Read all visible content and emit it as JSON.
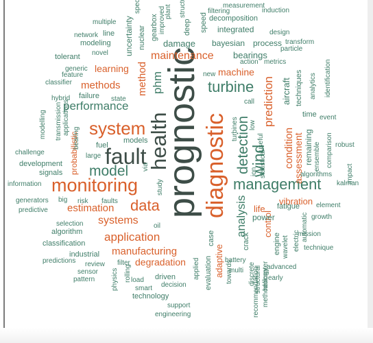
{
  "wordcloud": {
    "colors": {
      "teal": "#3f7d68",
      "orange": "#d9602b",
      "darkgray": "#3d4d47"
    },
    "words": [
      {
        "t": "prognostic",
        "c": "darkgray"
      },
      {
        "t": "diagnostic",
        "c": "orange"
      },
      {
        "t": "health",
        "c": "darkgray"
      },
      {
        "t": "fault",
        "c": "darkgray"
      },
      {
        "t": "monitoring",
        "c": "orange"
      },
      {
        "t": "system",
        "c": "orange"
      },
      {
        "t": "management",
        "c": "teal"
      },
      {
        "t": "turbine",
        "c": "teal"
      },
      {
        "t": "wind",
        "c": "teal"
      },
      {
        "t": "detection",
        "c": "teal"
      },
      {
        "t": "model",
        "c": "teal"
      },
      {
        "t": "data",
        "c": "orange"
      },
      {
        "t": "performance",
        "c": "teal"
      },
      {
        "t": "analysis",
        "c": "teal"
      },
      {
        "t": "maintenance",
        "c": "orange"
      },
      {
        "t": "phm",
        "c": "teal"
      },
      {
        "t": "condition",
        "c": "orange"
      },
      {
        "t": "prediction",
        "c": "orange"
      },
      {
        "t": "application",
        "c": "orange"
      },
      {
        "t": "manufacturing",
        "c": "orange"
      },
      {
        "t": "systems",
        "c": "orange"
      },
      {
        "t": "methods",
        "c": "orange"
      },
      {
        "t": "estimation",
        "c": "orange"
      },
      {
        "t": "method",
        "c": "orange"
      },
      {
        "t": "machine",
        "c": "orange"
      },
      {
        "t": "learning",
        "c": "orange"
      },
      {
        "t": "degradation",
        "c": "orange"
      },
      {
        "t": "assessment",
        "c": "orange"
      },
      {
        "t": "remaining",
        "c": "teal"
      },
      {
        "t": "adaptive",
        "c": "orange"
      },
      {
        "t": "vibration",
        "c": "orange"
      },
      {
        "t": "life",
        "c": "orange"
      },
      {
        "t": "control",
        "c": "orange"
      },
      {
        "t": "probabilistic",
        "c": "orange"
      },
      {
        "t": "bearings",
        "c": "teal"
      },
      {
        "t": "aircraft",
        "c": "teal"
      },
      {
        "t": "damage",
        "c": "teal"
      },
      {
        "t": "bayesian",
        "c": "teal"
      },
      {
        "t": "process",
        "c": "teal"
      },
      {
        "t": "integrated",
        "c": "teal"
      },
      {
        "t": "power",
        "c": "teal"
      },
      {
        "t": "fatigue",
        "c": "teal"
      },
      {
        "t": "engine",
        "c": "teal"
      },
      {
        "t": "crack",
        "c": "teal"
      },
      {
        "t": "case",
        "c": "teal"
      },
      {
        "t": "evaluation",
        "c": "teal"
      },
      {
        "t": "techniques",
        "c": "teal"
      },
      {
        "t": "time",
        "c": "teal"
      },
      {
        "t": "ensemble",
        "c": "teal"
      },
      {
        "t": "decomposition",
        "c": "teal"
      },
      {
        "t": "induction",
        "c": "teal"
      },
      {
        "t": "design",
        "c": "teal"
      },
      {
        "t": "transform",
        "c": "teal"
      },
      {
        "t": "particle",
        "c": "teal"
      },
      {
        "t": "metrics",
        "c": "teal"
      },
      {
        "t": "action",
        "c": "teal"
      },
      {
        "t": "modeling",
        "c": "teal"
      },
      {
        "t": "novel",
        "c": "teal"
      },
      {
        "t": "uncertainty",
        "c": "teal"
      },
      {
        "t": "nuclear",
        "c": "teal"
      },
      {
        "t": "gearbox",
        "c": "teal"
      },
      {
        "t": "improved",
        "c": "teal"
      },
      {
        "t": "deep",
        "c": "teal"
      },
      {
        "t": "speed",
        "c": "teal"
      },
      {
        "t": "plant",
        "c": "teal"
      },
      {
        "t": "structural",
        "c": "teal"
      },
      {
        "t": "filtering",
        "c": "teal"
      },
      {
        "t": "measurement",
        "c": "teal"
      },
      {
        "t": "multiple",
        "c": "teal"
      },
      {
        "t": "line",
        "c": "teal"
      },
      {
        "t": "network",
        "c": "teal"
      },
      {
        "t": "tolerant",
        "c": "teal"
      },
      {
        "t": "generic",
        "c": "teal"
      },
      {
        "t": "classifier",
        "c": "teal"
      },
      {
        "t": "feature",
        "c": "teal"
      },
      {
        "t": "hybrid",
        "c": "teal"
      },
      {
        "t": "state",
        "c": "teal"
      },
      {
        "t": "failure",
        "c": "teal"
      },
      {
        "t": "transmission",
        "c": "teal"
      },
      {
        "t": "modelling",
        "c": "teal"
      },
      {
        "t": "applications",
        "c": "teal"
      },
      {
        "t": "bearing",
        "c": "teal"
      },
      {
        "t": "large",
        "c": "teal"
      },
      {
        "t": "models",
        "c": "teal"
      },
      {
        "t": "fuel",
        "c": "teal"
      },
      {
        "t": "challenge",
        "c": "teal"
      },
      {
        "t": "development",
        "c": "teal"
      },
      {
        "t": "signals",
        "c": "teal"
      },
      {
        "t": "information",
        "c": "teal"
      },
      {
        "t": "generators",
        "c": "teal"
      },
      {
        "t": "big",
        "c": "teal"
      },
      {
        "t": "risk",
        "c": "teal"
      },
      {
        "t": "faults",
        "c": "teal"
      },
      {
        "t": "predictive",
        "c": "teal"
      },
      {
        "t": "selection",
        "c": "teal"
      },
      {
        "t": "algorithm",
        "c": "teal"
      },
      {
        "t": "oil",
        "c": "teal"
      },
      {
        "t": "classification",
        "c": "teal"
      },
      {
        "t": "industrial",
        "c": "teal"
      },
      {
        "t": "review",
        "c": "teal"
      },
      {
        "t": "predictions",
        "c": "teal"
      },
      {
        "t": "sensor",
        "c": "teal"
      },
      {
        "t": "filter",
        "c": "teal"
      },
      {
        "t": "pattern",
        "c": "teal"
      },
      {
        "t": "physics",
        "c": "teal"
      },
      {
        "t": "rolling",
        "c": "teal"
      },
      {
        "t": "load",
        "c": "teal"
      },
      {
        "t": "smart",
        "c": "teal"
      },
      {
        "t": "driven",
        "c": "teal"
      },
      {
        "t": "decision",
        "c": "teal"
      },
      {
        "t": "technology",
        "c": "teal"
      },
      {
        "t": "support",
        "c": "teal"
      },
      {
        "t": "engineering",
        "c": "teal"
      },
      {
        "t": "applied",
        "c": "teal"
      },
      {
        "t": "towards",
        "c": "teal"
      },
      {
        "t": "battery",
        "c": "teal"
      },
      {
        "t": "multi",
        "c": "teal"
      },
      {
        "t": "discrete",
        "c": "teal"
      },
      {
        "t": "structural",
        "c": "teal"
      },
      {
        "t": "helicopter",
        "c": "teal"
      },
      {
        "t": "recommendation",
        "c": "teal"
      },
      {
        "t": "methodology",
        "c": "teal"
      },
      {
        "t": "early",
        "c": "teal"
      },
      {
        "t": "advanced",
        "c": "teal"
      },
      {
        "t": "wavelet",
        "c": "teal"
      },
      {
        "t": "electric",
        "c": "teal"
      },
      {
        "t": "automatic",
        "c": "teal"
      },
      {
        "t": "mission",
        "c": "teal"
      },
      {
        "t": "technique",
        "c": "teal"
      },
      {
        "t": "element",
        "c": "teal"
      },
      {
        "t": "growth",
        "c": "teal"
      },
      {
        "t": "algorithms",
        "c": "teal"
      },
      {
        "t": "ion",
        "c": "teal"
      },
      {
        "t": "statistical",
        "c": "teal"
      },
      {
        "t": "impact",
        "c": "teal"
      },
      {
        "t": "kalman",
        "c": "teal"
      },
      {
        "t": "robust",
        "c": "teal"
      },
      {
        "t": "comparison",
        "c": "teal"
      },
      {
        "t": "event",
        "c": "teal"
      },
      {
        "t": "analytics",
        "c": "teal"
      },
      {
        "t": "identification",
        "c": "teal"
      },
      {
        "t": "low",
        "c": "teal"
      },
      {
        "t": "turbines",
        "c": "teal"
      },
      {
        "t": "useful",
        "c": "teal"
      },
      {
        "t": "call",
        "c": "teal"
      },
      {
        "t": "new",
        "c": "teal"
      },
      {
        "t": "study",
        "c": "teal"
      },
      {
        "t": "via",
        "c": "teal"
      },
      {
        "t": "spec",
        "c": "teal"
      }
    ]
  }
}
